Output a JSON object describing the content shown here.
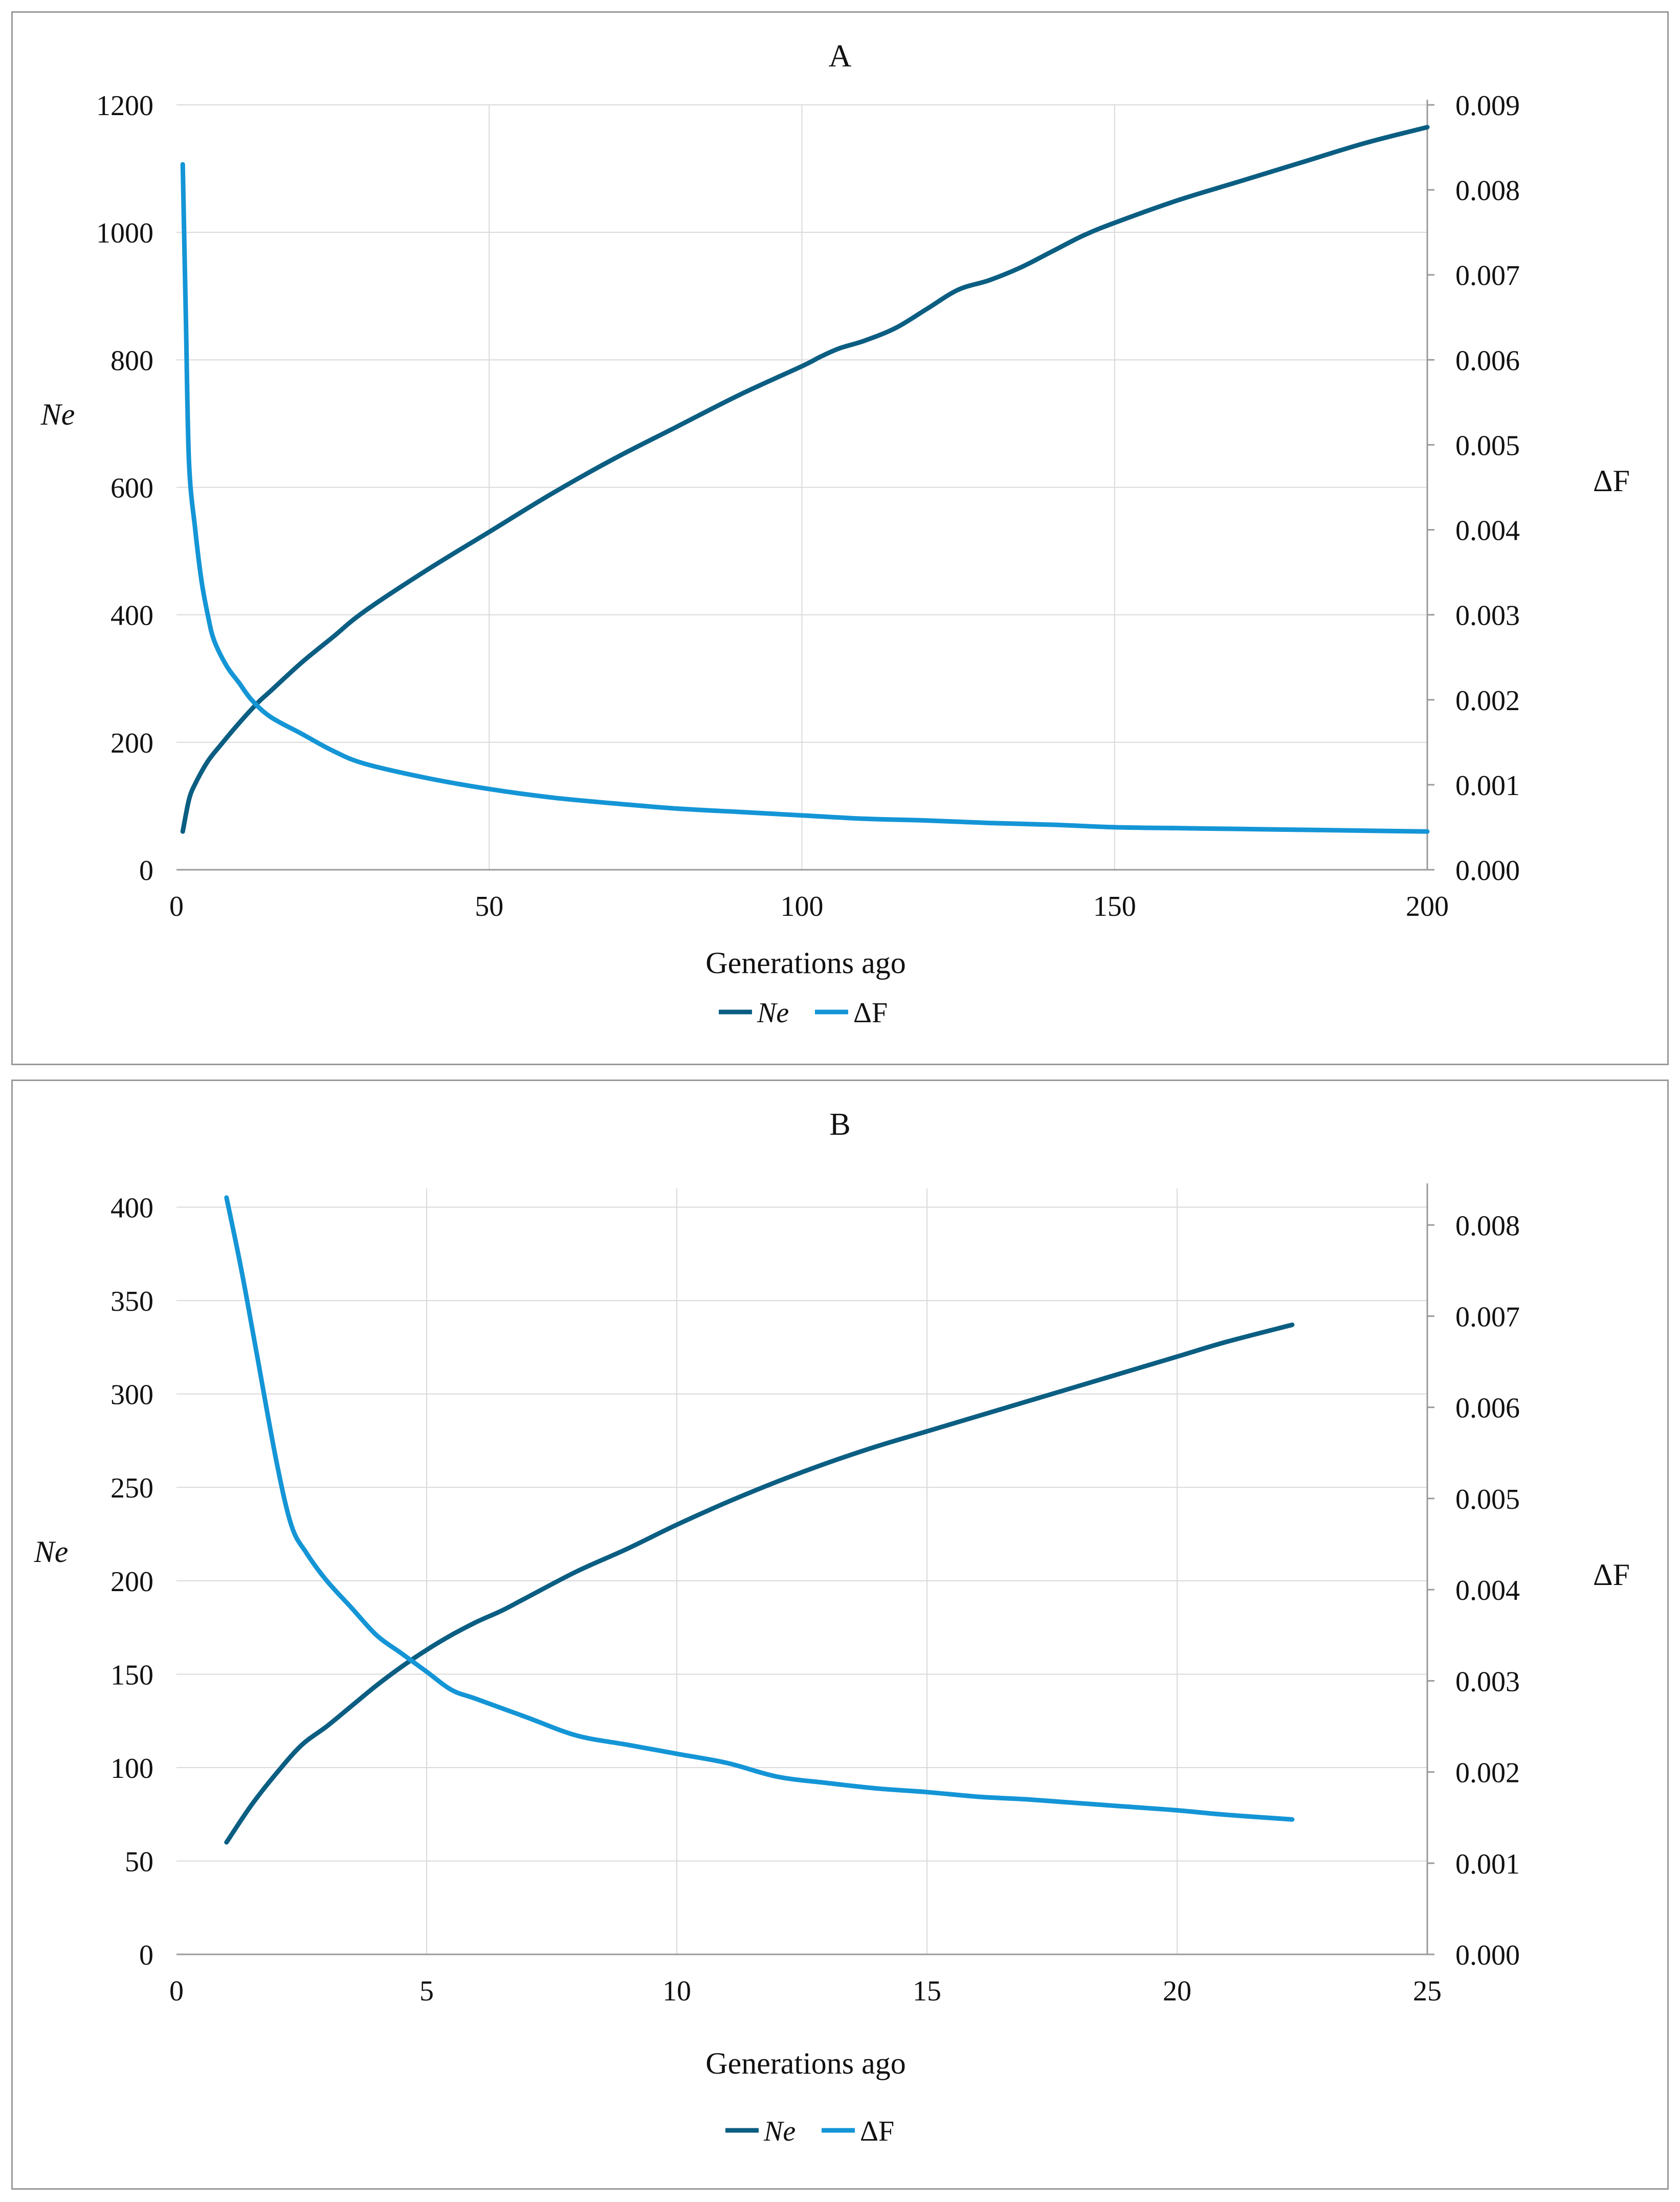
{
  "colors": {
    "ne": "#0b5e82",
    "df": "#1495d6",
    "grid": "#d9d9d9",
    "axis": "#9a9a9a"
  },
  "chart_data": [
    {
      "type": "line",
      "title": "A",
      "xlabel": "Generations ago",
      "ylabel": "Ne",
      "y2label": "ΔF",
      "xlim": [
        0,
        200
      ],
      "ylim": [
        0,
        1200
      ],
      "y2lim": [
        0,
        0.009
      ],
      "xticks": [
        "0",
        "50",
        "100",
        "150",
        "200"
      ],
      "yticks": [
        "0",
        "200",
        "400",
        "600",
        "800",
        "1000",
        "1200"
      ],
      "y2ticks": [
        "0.000",
        "0.001",
        "0.002",
        "0.003",
        "0.004",
        "0.005",
        "0.006",
        "0.007",
        "0.008",
        "0.009"
      ],
      "legend": {
        "position": "bottom-center",
        "entries": [
          "Ne",
          "ΔF"
        ]
      },
      "series": [
        {
          "name": "Ne",
          "axis": "left",
          "x": [
            1,
            2,
            3,
            5,
            7,
            10,
            13,
            15,
            20,
            25,
            30,
            40,
            50,
            60,
            70,
            80,
            90,
            100,
            103,
            106,
            110,
            115,
            120,
            125,
            130,
            135,
            140,
            145,
            150,
            160,
            170,
            180,
            190,
            200
          ],
          "values": [
            60,
            110,
            135,
            170,
            195,
            230,
            262,
            280,
            325,
            365,
            405,
            470,
            530,
            590,
            645,
            695,
            745,
            790,
            805,
            818,
            830,
            850,
            880,
            910,
            925,
            945,
            970,
            995,
            1015,
            1050,
            1080,
            1110,
            1140,
            1165
          ]
        },
        {
          "name": "ΔF",
          "axis": "right",
          "x": [
            1,
            1.5,
            2,
            3,
            4,
            5,
            6,
            8,
            10,
            12,
            15,
            20,
            25,
            30,
            40,
            50,
            60,
            70,
            80,
            90,
            100,
            110,
            120,
            130,
            140,
            150,
            160,
            170,
            180,
            190,
            200
          ],
          "values": [
            0.0083,
            0.0065,
            0.0048,
            0.004,
            0.0034,
            0.003,
            0.0027,
            0.0024,
            0.0022,
            0.002,
            0.0018,
            0.0016,
            0.0014,
            0.00125,
            0.00108,
            0.00095,
            0.00085,
            0.00078,
            0.00072,
            0.00068,
            0.00064,
            0.0006,
            0.00058,
            0.00055,
            0.00053,
            0.0005,
            0.00049,
            0.00048,
            0.00047,
            0.00046,
            0.00045
          ]
        }
      ]
    },
    {
      "type": "line",
      "title": "B",
      "xlabel": "Generations ago",
      "ylabel": "Ne",
      "y2label": "ΔF",
      "xlim": [
        0,
        25
      ],
      "ylim": [
        0,
        410
      ],
      "y2lim": [
        0,
        0.0084
      ],
      "xticks": [
        "0",
        "5",
        "10",
        "15",
        "20",
        "25"
      ],
      "yticks": [
        "0",
        "50",
        "100",
        "150",
        "200",
        "250",
        "300",
        "350",
        "400"
      ],
      "y2ticks": [
        "0.000",
        "0.001",
        "0.002",
        "0.003",
        "0.004",
        "0.005",
        "0.006",
        "0.007",
        "0.008"
      ],
      "legend": {
        "position": "bottom-center",
        "entries": [
          "Ne",
          "ΔF"
        ]
      },
      "series": [
        {
          "name": "Ne",
          "axis": "left",
          "x": [
            1,
            1.5,
            2,
            2.5,
            3,
            3.5,
            4,
            4.5,
            5,
            5.5,
            6,
            6.5,
            7,
            8,
            9,
            10,
            11,
            12,
            13,
            14,
            15,
            16,
            17,
            18,
            19,
            20,
            21,
            22.3
          ],
          "values": [
            60,
            80,
            97,
            112,
            122,
            133,
            144,
            154,
            163,
            171,
            178,
            184,
            191,
            205,
            217,
            230,
            242,
            253,
            263,
            272,
            280,
            288,
            296,
            304,
            312,
            320,
            328,
            337
          ]
        },
        {
          "name": "ΔF",
          "axis": "right",
          "x": [
            1,
            1.3,
            1.6,
            2,
            2.3,
            2.6,
            3,
            3.5,
            4,
            4.5,
            5,
            5.5,
            6,
            7,
            8,
            9,
            10,
            11,
            12,
            13,
            14,
            15,
            16,
            17,
            18,
            19,
            20,
            21,
            22.3
          ],
          "values": [
            0.0083,
            0.0075,
            0.0066,
            0.0054,
            0.0047,
            0.0044,
            0.0041,
            0.0038,
            0.0035,
            0.0033,
            0.0031,
            0.0029,
            0.0028,
            0.0026,
            0.0024,
            0.0023,
            0.0022,
            0.0021,
            0.00195,
            0.00188,
            0.00182,
            0.00178,
            0.00173,
            0.0017,
            0.00166,
            0.00162,
            0.00158,
            0.00153,
            0.00148
          ]
        }
      ]
    }
  ]
}
